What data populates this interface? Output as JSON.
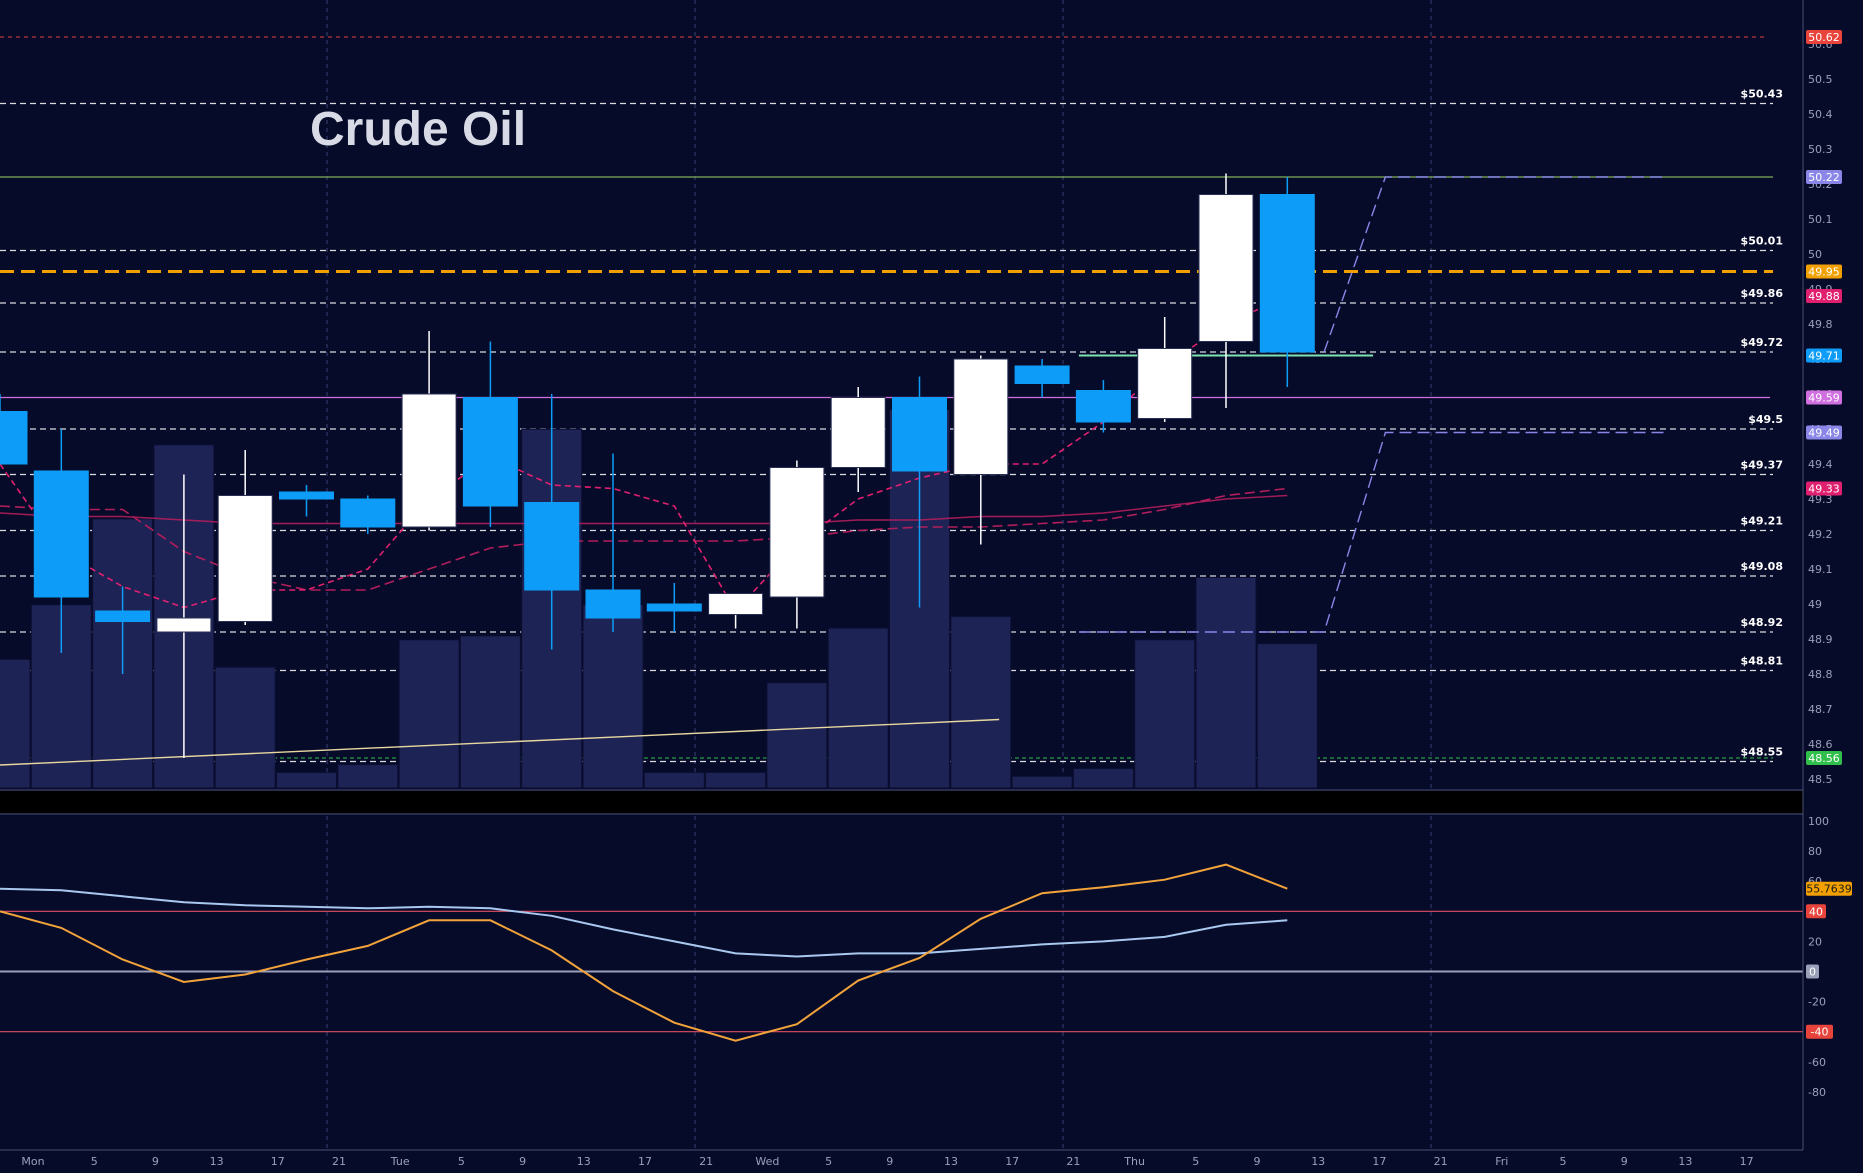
{
  "chart_data": {
    "type": "candlestick",
    "title": "Crude Oil",
    "colors": {
      "background": "#070b2a",
      "bull": "#ffffff",
      "bear": "#0d9cf7",
      "volume": "#1e2355",
      "ma_fast": "#e0206f",
      "ma_slow": "#b21e5c",
      "level_line": "#ffffff",
      "current_price": "#f2a000",
      "oscillator_k": "#f2a33a",
      "oscillator_d": "#a9c8f0",
      "osc_band": "#e05060"
    },
    "price_axis": {
      "ylim": [
        48.48,
        50.64
      ],
      "ticks": [
        "50.6",
        "50.5",
        "50.4",
        "50.3",
        "50.2",
        "50.1",
        "50",
        "49.9",
        "49.8",
        "49.7",
        "49.6",
        "49.5",
        "49.4",
        "49.3",
        "49.2",
        "49.1",
        "49",
        "48.9",
        "48.8",
        "48.7",
        "48.6",
        "48.5"
      ]
    },
    "time_axis": {
      "labels": [
        "Mon",
        "5",
        "9",
        "13",
        "17",
        "21",
        "Tue",
        "5",
        "9",
        "13",
        "17",
        "21",
        "Wed",
        "5",
        "9",
        "13",
        "17",
        "21",
        "Thu",
        "5",
        "9",
        "13",
        "17",
        "21",
        "Fri",
        "5",
        "9",
        "13",
        "17"
      ]
    },
    "levels": [
      {
        "label": "$50.43",
        "value": 50.43
      },
      {
        "label": "$50.01",
        "value": 50.01
      },
      {
        "label": "$49.86",
        "value": 49.86
      },
      {
        "label": "$49.72",
        "value": 49.72
      },
      {
        "label": "$49.5",
        "value": 49.5
      },
      {
        "label": "$49.37",
        "value": 49.37
      },
      {
        "label": "$49.21",
        "value": 49.21
      },
      {
        "label": "$49.08",
        "value": 49.08
      },
      {
        "label": "$48.92",
        "value": 48.92
      },
      {
        "label": "$48.81",
        "value": 48.81
      },
      {
        "label": "$48.55",
        "value": 48.55
      }
    ],
    "price_badges": [
      {
        "text": "50.62",
        "value": 50.62,
        "color": "#e8443c"
      },
      {
        "text": "50.22",
        "value": 50.22,
        "color": "#8a86e8"
      },
      {
        "text": "49.95",
        "value": 49.95,
        "color": "#f2a000"
      },
      {
        "text": "49.88",
        "value": 49.88,
        "color": "#e0206f"
      },
      {
        "text": "49.71",
        "value": 49.71,
        "color": "#0d9cf7"
      },
      {
        "text": "49.59",
        "value": 49.59,
        "color": "#d070e0"
      },
      {
        "text": "49.49",
        "value": 49.49,
        "color": "#8a86e8"
      },
      {
        "text": "49.33",
        "value": 49.33,
        "color": "#e0206f"
      },
      {
        "text": "48.56",
        "value": 48.56,
        "color": "#2fbf4a"
      }
    ],
    "candles": [
      {
        "o": 49.55,
        "h": 49.6,
        "l": 49.4,
        "c": 49.4
      },
      {
        "o": 49.38,
        "h": 49.5,
        "l": 48.86,
        "c": 49.02
      },
      {
        "o": 48.98,
        "h": 49.05,
        "l": 48.8,
        "c": 48.95
      },
      {
        "o": 48.92,
        "h": 49.37,
        "l": 48.56,
        "c": 48.96
      },
      {
        "o": 48.95,
        "h": 49.44,
        "l": 48.94,
        "c": 49.31
      },
      {
        "o": 49.32,
        "h": 49.34,
        "l": 49.25,
        "c": 49.3
      },
      {
        "o": 49.3,
        "h": 49.31,
        "l": 49.2,
        "c": 49.22
      },
      {
        "o": 49.22,
        "h": 49.78,
        "l": 49.21,
        "c": 49.6
      },
      {
        "o": 49.59,
        "h": 49.75,
        "l": 49.22,
        "c": 49.28
      },
      {
        "o": 49.29,
        "h": 49.6,
        "l": 48.87,
        "c": 49.04
      },
      {
        "o": 49.04,
        "h": 49.43,
        "l": 48.92,
        "c": 48.96
      },
      {
        "o": 49.0,
        "h": 49.06,
        "l": 48.92,
        "c": 48.98
      },
      {
        "o": 48.97,
        "h": 49.03,
        "l": 48.93,
        "c": 49.03
      },
      {
        "o": 49.02,
        "h": 49.41,
        "l": 48.93,
        "c": 49.39
      },
      {
        "o": 49.39,
        "h": 49.62,
        "l": 49.32,
        "c": 49.59
      },
      {
        "o": 49.59,
        "h": 49.65,
        "l": 48.99,
        "c": 49.38
      },
      {
        "o": 49.37,
        "h": 49.71,
        "l": 49.17,
        "c": 49.7
      },
      {
        "o": 49.68,
        "h": 49.7,
        "l": 49.59,
        "c": 49.63
      },
      {
        "o": 49.61,
        "h": 49.64,
        "l": 49.49,
        "c": 49.52
      },
      {
        "o": 49.53,
        "h": 49.82,
        "l": 49.52,
        "c": 49.73
      },
      {
        "o": 49.75,
        "h": 50.23,
        "l": 49.56,
        "c": 50.17
      },
      {
        "o": 50.17,
        "h": 50.22,
        "l": 49.62,
        "c": 49.72
      }
    ],
    "volume": [
      33,
      47,
      69,
      88,
      31,
      4,
      6,
      38,
      39,
      92,
      47,
      4,
      4,
      27,
      41,
      97,
      44,
      3,
      5,
      38,
      54,
      37
    ],
    "volume_max": 100,
    "ma_fast": [
      49.4,
      49.15,
      49.05,
      48.99,
      49.04,
      49.04,
      49.1,
      49.3,
      49.42,
      49.34,
      49.33,
      49.28,
      48.98,
      49.17,
      49.3,
      49.36,
      49.4,
      49.4,
      49.52,
      49.68,
      49.8,
      49.88
    ],
    "ma_slow": [
      49.28,
      49.27,
      49.27,
      49.15,
      49.08,
      49.04,
      49.04,
      49.1,
      49.16,
      49.18,
      49.18,
      49.18,
      49.18,
      49.19,
      49.21,
      49.22,
      49.22,
      49.23,
      49.24,
      49.27,
      49.31,
      49.33
    ],
    "ma_long": [
      49.26,
      49.25,
      49.25,
      49.24,
      49.23,
      49.23,
      49.23,
      49.23,
      49.23,
      49.23,
      49.23,
      49.23,
      49.23,
      49.23,
      49.24,
      49.24,
      49.25,
      49.25,
      49.26,
      49.28,
      49.3,
      49.31
    ],
    "projection_upper": [
      [
        21.6,
        49.72
      ],
      [
        22.6,
        50.22
      ],
      [
        27.2,
        50.22
      ]
    ],
    "projection_lower": [
      [
        17.6,
        48.92
      ],
      [
        21.6,
        48.92
      ],
      [
        22.6,
        49.49
      ],
      [
        27.2,
        49.49
      ]
    ],
    "trendline": [
      [
        0,
        48.54
      ],
      [
        16.3,
        48.67
      ]
    ],
    "h_segment": {
      "from": 17.6,
      "to": 22.4,
      "value": 49.71
    },
    "oscillator": {
      "ylim": [
        -100,
        100
      ],
      "ticks": [
        "100",
        "80",
        "60",
        "40",
        "20",
        "0",
        "-20",
        "-40",
        "-60",
        "-80"
      ],
      "bands": [
        40,
        0,
        -40
      ],
      "value_badge": "55.7639",
      "band_badges": [
        "40",
        "0",
        "-40"
      ],
      "k": [
        40,
        29,
        8,
        -7,
        -2,
        8,
        17,
        34,
        34,
        14,
        -13,
        -34,
        -46,
        -35,
        -6,
        9,
        35,
        52,
        56,
        61,
        71,
        55
      ],
      "d": [
        55,
        54,
        50,
        46,
        44,
        43,
        42,
        43,
        42,
        37,
        28,
        20,
        12,
        10,
        12,
        12,
        15,
        18,
        20,
        23,
        31,
        34
      ]
    }
  }
}
